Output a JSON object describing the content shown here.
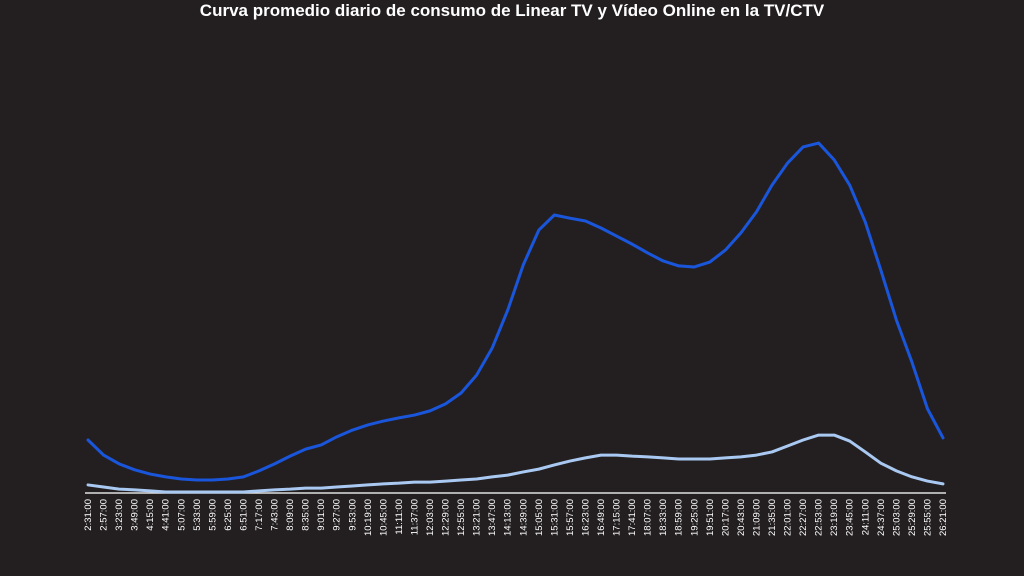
{
  "chart_data": {
    "type": "line",
    "title": "Curva promedio diario de consumo de Linear TV y Vídeo Online en la TV/CTV",
    "categories": [
      "2:31:00",
      "2:57:00",
      "3:23:00",
      "3:49:00",
      "4:15:00",
      "4:41:00",
      "5:07:00",
      "5:33:00",
      "5:59:00",
      "6:25:00",
      "6:51:00",
      "7:17:00",
      "7:43:00",
      "8:09:00",
      "8:35:00",
      "9:01:00",
      "9:27:00",
      "9:53:00",
      "10:19:00",
      "10:45:00",
      "11:11:00",
      "11:37:00",
      "12:03:00",
      "12:29:00",
      "12:55:00",
      "13:21:00",
      "13:47:00",
      "14:13:00",
      "14:39:00",
      "15:05:00",
      "15:31:00",
      "15:57:00",
      "16:23:00",
      "16:49:00",
      "17:15:00",
      "17:41:00",
      "18:07:00",
      "18:33:00",
      "18:59:00",
      "19:25:00",
      "19:51:00",
      "20:17:00",
      "20:43:00",
      "21:09:00",
      "21:35:00",
      "22:01:00",
      "22:27:00",
      "22:53:00",
      "23:19:00",
      "23:45:00",
      "24:11:00",
      "24:37:00",
      "25:03:00",
      "25:29:00",
      "25:55:00",
      "26:21:00"
    ],
    "series": [
      {
        "color": "#1a56db",
        "values": [
          15.1,
          10.8,
          8.3,
          6.6,
          5.4,
          4.6,
          4.0,
          3.7,
          3.7,
          4.0,
          4.6,
          6.3,
          8.3,
          10.5,
          12.5,
          13.7,
          16.0,
          17.9,
          19.4,
          20.5,
          21.4,
          22.2,
          23.4,
          25.4,
          28.5,
          33.6,
          41.3,
          52.1,
          65.0,
          74.9,
          79.2,
          78.3,
          77.5,
          75.5,
          73.2,
          70.9,
          68.4,
          66.1,
          64.7,
          64.4,
          65.8,
          69.2,
          74.1,
          80.1,
          87.7,
          94.0,
          98.6,
          99.7,
          94.9,
          87.7,
          77.2,
          63.5,
          49.3,
          37.3,
          24.0,
          15.7
        ]
      },
      {
        "color": "#a9c9f2",
        "values": [
          2.3,
          1.7,
          1.1,
          0.9,
          0.6,
          0.3,
          0.3,
          0.3,
          0.3,
          0.3,
          0.3,
          0.6,
          0.9,
          1.1,
          1.4,
          1.4,
          1.7,
          2.0,
          2.3,
          2.6,
          2.8,
          3.1,
          3.1,
          3.4,
          3.7,
          4.0,
          4.6,
          5.1,
          6.0,
          6.8,
          8.0,
          9.1,
          10.0,
          10.8,
          10.8,
          10.5,
          10.3,
          10.0,
          9.7,
          9.7,
          9.7,
          10.0,
          10.3,
          10.8,
          11.7,
          13.4,
          15.1,
          16.5,
          16.5,
          14.8,
          11.7,
          8.5,
          6.3,
          4.6,
          3.4,
          2.6
        ]
      }
    ],
    "ylim": [
      0,
      100
    ]
  }
}
